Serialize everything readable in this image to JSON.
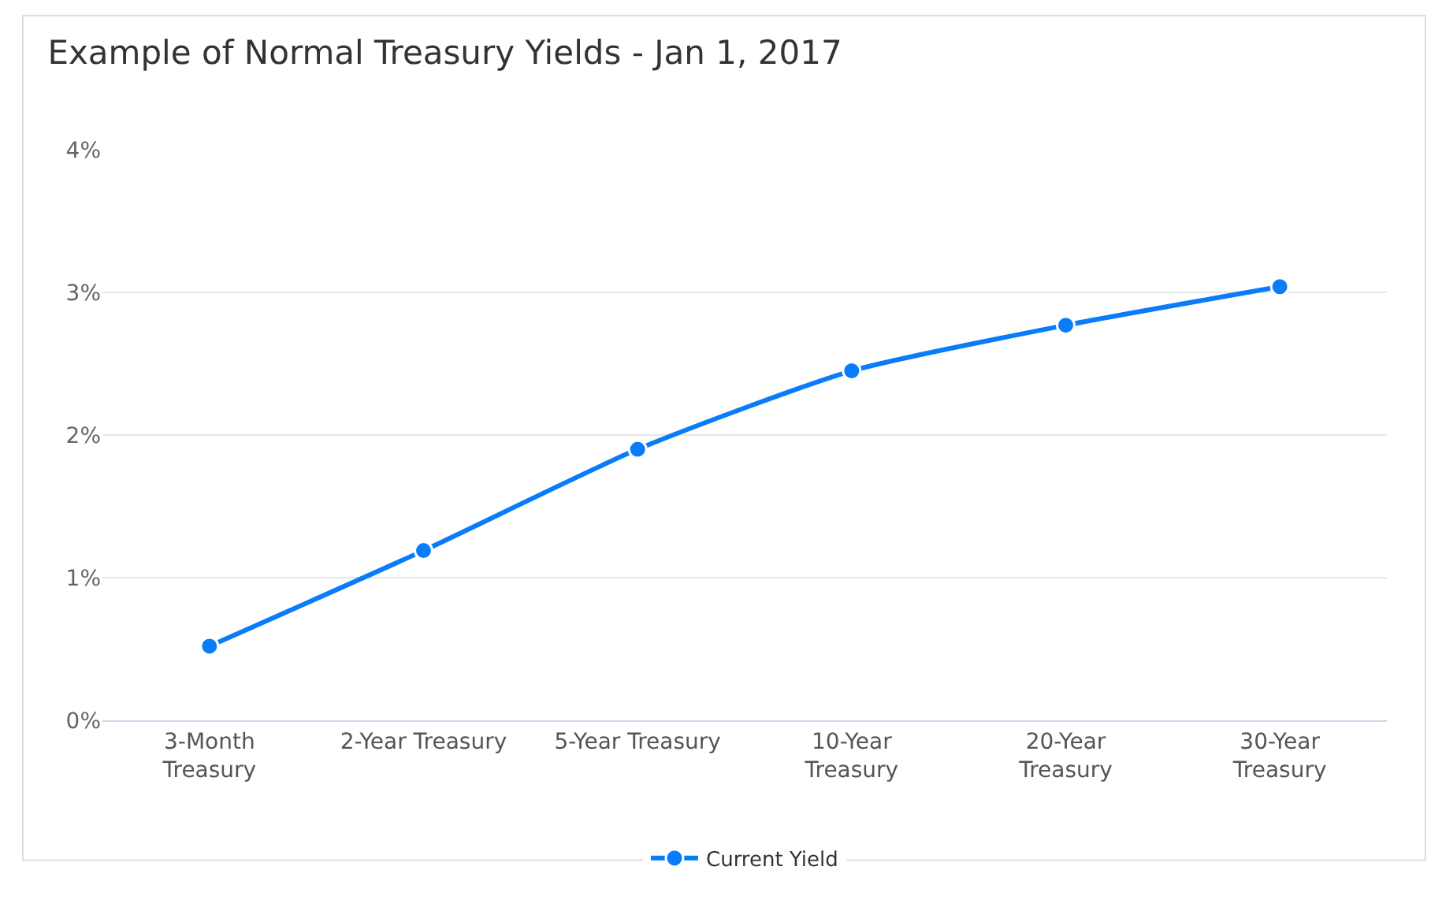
{
  "chart_data": {
    "type": "line",
    "title": "Example of Normal Treasury Yields - Jan 1, 2017",
    "categories": [
      "3-Month Treasury",
      "2-Year Treasury",
      "5-Year Treasury",
      "10-Year Treasury",
      "20-Year Treasury",
      "30-Year Treasury"
    ],
    "series": [
      {
        "name": "Current Yield",
        "color": "#0a7cfa",
        "values": [
          0.52,
          1.19,
          1.9,
          2.45,
          2.77,
          3.04
        ]
      }
    ],
    "ylim": [
      0,
      4
    ],
    "yticks": [
      {
        "value": 0,
        "label": "0%"
      },
      {
        "value": 1,
        "label": "1%"
      },
      {
        "value": 2,
        "label": "2%"
      },
      {
        "value": 3,
        "label": "3%"
      },
      {
        "value": 4,
        "label": "4%"
      }
    ],
    "grid": "y",
    "legend": "bottom",
    "marker": "circle",
    "line_style": "solid"
  }
}
